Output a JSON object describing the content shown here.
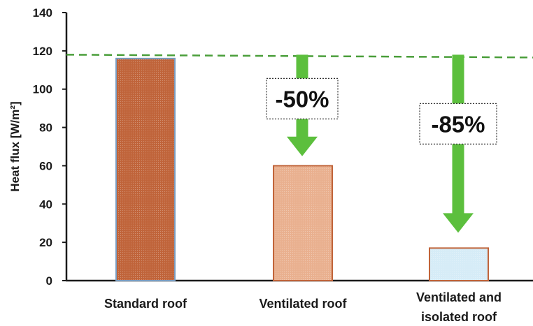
{
  "chart_data": {
    "type": "bar",
    "categories": [
      "Standard roof",
      "Ventilated roof",
      "Ventilated and isolated roof"
    ],
    "category_lines": [
      [
        "Standard roof"
      ],
      [
        "Ventilated roof"
      ],
      [
        "Ventilated and",
        "isolated roof"
      ]
    ],
    "values": [
      116,
      60,
      17
    ],
    "ylabel": "Heat flux [W/m²]",
    "ylim": [
      0,
      140
    ],
    "yticks": [
      0,
      20,
      40,
      60,
      80,
      100,
      120,
      140
    ],
    "reference_line": {
      "value": 118,
      "color": "#4a9e3a",
      "style": "dashed"
    },
    "annotations": [
      {
        "text": "-50%",
        "bar": 1,
        "from": 118,
        "to": 65
      },
      {
        "text": "-85%",
        "bar": 2,
        "from": 118,
        "to": 25
      }
    ],
    "bar_colors": [
      {
        "fill": "#c0643a",
        "stroke": "#7a9cc0"
      },
      {
        "fill": "#e9b08f",
        "stroke": "#c0643a"
      },
      {
        "fill": "#d6ecf7",
        "stroke": "#c0643a"
      }
    ],
    "arrow_color": "#5cbf3d",
    "grid": false,
    "legend": "none"
  }
}
